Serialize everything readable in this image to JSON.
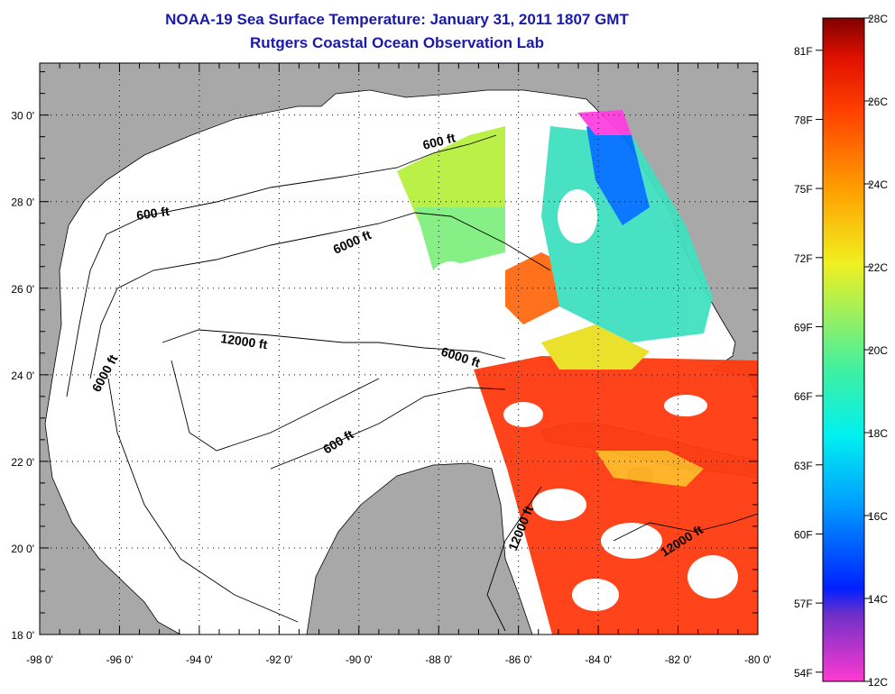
{
  "title": {
    "line1": "NOAA-19 Sea Surface Temperature:  January 31, 2011 1807 GMT",
    "line2": "Rutgers Coastal Ocean Observation Lab"
  },
  "map": {
    "lat_labels": [
      "30 0'",
      "28 0'",
      "26 0'",
      "24 0'",
      "22 0'",
      "20 0'",
      "18 0'"
    ],
    "lon_labels": [
      "-98 0'",
      "-96 0'",
      "-94 0'",
      "-92 0'",
      "-90 0'",
      "-88 0'",
      "-86 0'",
      "-84 0'",
      "-82 0'",
      "-80 0'"
    ],
    "contour_labels": [
      "600 ft",
      "600 ft",
      "6000 ft",
      "6000 ft",
      "12000 ft",
      "6000 ft",
      "600 ft",
      "12000 ft",
      "12000 ft"
    ],
    "land_color": "#a8a8a8",
    "ocean_color": "#ffffff"
  },
  "colorbar": {
    "celsius_labels": [
      "28C",
      "26C",
      "24C",
      "22C",
      "20C",
      "18C",
      "16C",
      "14C",
      "12C"
    ],
    "fahrenheit_labels": [
      "81F",
      "78F",
      "75F",
      "72F",
      "69F",
      "66F",
      "63F",
      "60F",
      "57F",
      "54F"
    ],
    "colors": [
      "#ff3ad0",
      "#7030c8",
      "#0020ff",
      "#00a0ff",
      "#00f0f0",
      "#40f0a0",
      "#f0f020",
      "#ffa000",
      "#ff4000",
      "#e01000",
      "#800000"
    ]
  }
}
